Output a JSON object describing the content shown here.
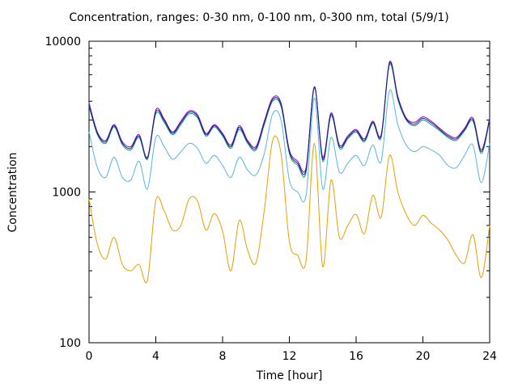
{
  "chart_data": {
    "type": "line",
    "title": "Concentration, ranges: 0-30 nm, 0-100 nm, 0-300 nm, total (5/9/1)",
    "xlabel": "Time [hour]",
    "ylabel": "Concentration",
    "xlim": [
      0,
      24
    ],
    "ylim": [
      100,
      10000
    ],
    "yscale": "log",
    "xticks": [
      0,
      4,
      8,
      12,
      16,
      20,
      24
    ],
    "yticks": [
      100,
      1000,
      10000
    ],
    "grid": false,
    "legend": "none",
    "x": [
      0,
      0.5,
      1,
      1.5,
      2,
      2.5,
      3,
      3.5,
      4,
      4.5,
      5,
      5.5,
      6,
      6.5,
      7,
      7.5,
      8,
      8.5,
      9,
      9.5,
      10,
      10.5,
      11,
      11.5,
      12,
      12.5,
      13,
      13.5,
      14,
      14.5,
      15,
      15.5,
      16,
      16.5,
      17,
      17.5,
      18,
      18.5,
      19,
      19.5,
      20,
      20.5,
      21,
      21.5,
      22,
      22.5,
      23,
      23.5,
      24
    ],
    "series": [
      {
        "color": "#e69f00",
        "values": [
          900,
          450,
          360,
          500,
          330,
          300,
          330,
          260,
          880,
          750,
          560,
          600,
          900,
          870,
          560,
          720,
          550,
          300,
          650,
          410,
          340,
          760,
          2200,
          1800,
          470,
          380,
          350,
          2100,
          320,
          1200,
          500,
          600,
          710,
          530,
          950,
          680,
          1750,
          1000,
          710,
          600,
          700,
          620,
          560,
          480,
          380,
          340,
          520,
          270,
          600
        ]
      },
      {
        "color": "#56b4e9",
        "values": [
          2500,
          1450,
          1250,
          1700,
          1250,
          1200,
          1600,
          1050,
          2300,
          2000,
          1650,
          1850,
          2100,
          1950,
          1550,
          1750,
          1500,
          1250,
          1700,
          1400,
          1300,
          1800,
          3300,
          3000,
          1200,
          1000,
          950,
          4200,
          1050,
          2300,
          1350,
          1550,
          1750,
          1500,
          2050,
          1600,
          4700,
          2800,
          2050,
          1850,
          2000,
          1900,
          1750,
          1500,
          1450,
          1750,
          2050,
          1150,
          2100
        ]
      },
      {
        "color": "#009e73",
        "values": [
          3700,
          2400,
          2100,
          2700,
          2050,
          1900,
          2300,
          1650,
          3300,
          2900,
          2400,
          2800,
          3300,
          3100,
          2350,
          2700,
          2350,
          1950,
          2600,
          2100,
          1900,
          2800,
          4000,
          3700,
          1800,
          1500,
          1350,
          4900,
          1600,
          3200,
          1950,
          2250,
          2500,
          2150,
          2850,
          2300,
          7000,
          4100,
          3000,
          2750,
          3000,
          2800,
          2550,
          2300,
          2200,
          2550,
          2950,
          1800,
          3000
        ]
      },
      {
        "color": "#9400d3",
        "values": [
          3900,
          2500,
          2200,
          2800,
          2150,
          2000,
          2400,
          1700,
          3500,
          3050,
          2500,
          2950,
          3450,
          3250,
          2450,
          2800,
          2450,
          2050,
          2750,
          2200,
          2000,
          2950,
          4200,
          3900,
          1900,
          1600,
          1450,
          5000,
          1700,
          3350,
          2050,
          2350,
          2600,
          2250,
          2950,
          2400,
          7300,
          4300,
          3100,
          2900,
          3150,
          2950,
          2650,
          2400,
          2300,
          2650,
          3100,
          1900,
          3100
        ]
      },
      {
        "color": "#1a237e",
        "values": [
          3800,
          2450,
          2150,
          2750,
          2100,
          1950,
          2350,
          1680,
          3400,
          2980,
          2450,
          2880,
          3380,
          3180,
          2400,
          2750,
          2400,
          2000,
          2680,
          2150,
          1950,
          2880,
          4100,
          3800,
          1850,
          1550,
          1400,
          4950,
          1650,
          3280,
          2000,
          2300,
          2550,
          2200,
          2900,
          2350,
          7150,
          4200,
          3050,
          2820,
          3080,
          2880,
          2600,
          2350,
          2250,
          2600,
          3020,
          1850,
          3050
        ]
      }
    ]
  }
}
